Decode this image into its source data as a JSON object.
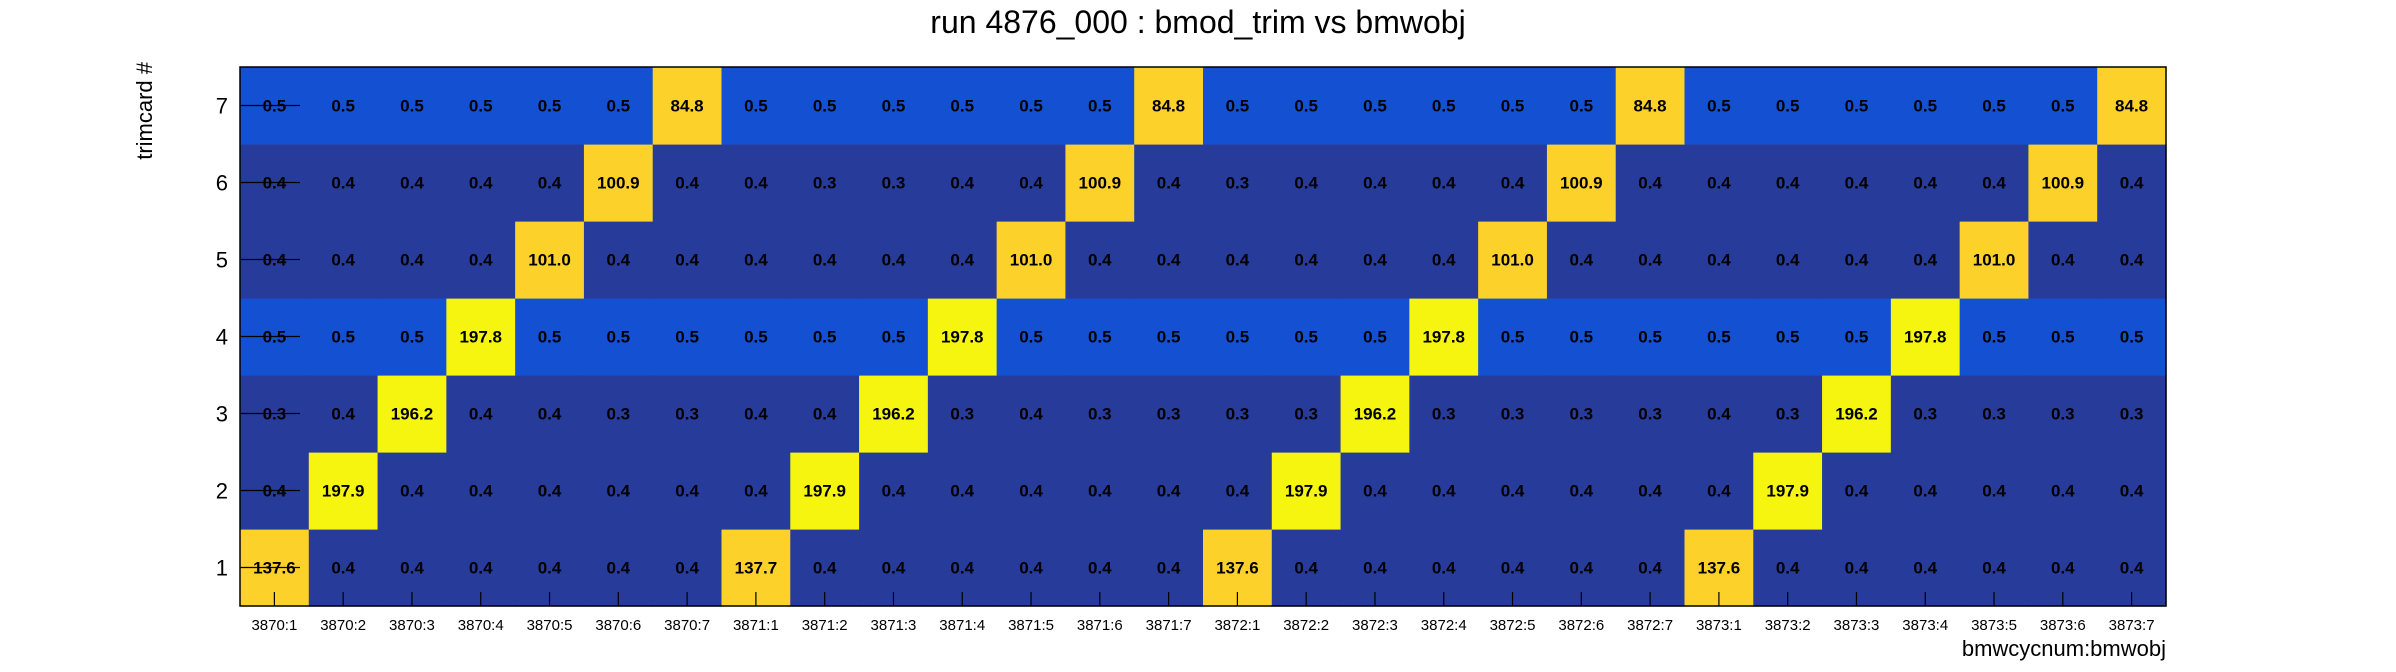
{
  "chart_data": {
    "type": "heatmap",
    "title": "run 4876_000 : bmod_trim vs bmwobj",
    "xlabel": "bmwcycnum:bmwobj",
    "ylabel": "trimcard #",
    "x_categories": [
      "3870:1",
      "3870:2",
      "3870:3",
      "3870:4",
      "3870:5",
      "3870:6",
      "3870:7",
      "3871:1",
      "3871:2",
      "3871:3",
      "3871:4",
      "3871:5",
      "3871:6",
      "3871:7",
      "3872:1",
      "3872:2",
      "3872:3",
      "3872:4",
      "3872:5",
      "3872:6",
      "3872:7",
      "3873:1",
      "3873:2",
      "3873:3",
      "3873:4",
      "3873:5",
      "3873:6",
      "3873:7"
    ],
    "y_categories": [
      "1",
      "2",
      "3",
      "4",
      "5",
      "6",
      "7"
    ],
    "values": [
      [
        "137.6",
        "0.4",
        "0.4",
        "0.4",
        "0.4",
        "0.4",
        "0.4",
        "137.7",
        "0.4",
        "0.4",
        "0.4",
        "0.4",
        "0.4",
        "0.4",
        "137.6",
        "0.4",
        "0.4",
        "0.4",
        "0.4",
        "0.4",
        "0.4",
        "137.6",
        "0.4",
        "0.4",
        "0.4",
        "0.4",
        "0.4",
        "0.4"
      ],
      [
        "0.4",
        "197.9",
        "0.4",
        "0.4",
        "0.4",
        "0.4",
        "0.4",
        "0.4",
        "197.9",
        "0.4",
        "0.4",
        "0.4",
        "0.4",
        "0.4",
        "0.4",
        "197.9",
        "0.4",
        "0.4",
        "0.4",
        "0.4",
        "0.4",
        "0.4",
        "197.9",
        "0.4",
        "0.4",
        "0.4",
        "0.4",
        "0.4"
      ],
      [
        "0.3",
        "0.4",
        "196.2",
        "0.4",
        "0.4",
        "0.3",
        "0.3",
        "0.4",
        "0.4",
        "196.2",
        "0.3",
        "0.4",
        "0.3",
        "0.3",
        "0.3",
        "0.3",
        "196.2",
        "0.3",
        "0.3",
        "0.3",
        "0.3",
        "0.4",
        "0.3",
        "196.2",
        "0.3",
        "0.3",
        "0.3",
        "0.3"
      ],
      [
        "0.5",
        "0.5",
        "0.5",
        "197.8",
        "0.5",
        "0.5",
        "0.5",
        "0.5",
        "0.5",
        "0.5",
        "197.8",
        "0.5",
        "0.5",
        "0.5",
        "0.5",
        "0.5",
        "0.5",
        "197.8",
        "0.5",
        "0.5",
        "0.5",
        "0.5",
        "0.5",
        "0.5",
        "197.8",
        "0.5",
        "0.5",
        "0.5"
      ],
      [
        "0.4",
        "0.4",
        "0.4",
        "0.4",
        "101.0",
        "0.4",
        "0.4",
        "0.4",
        "0.4",
        "0.4",
        "0.4",
        "101.0",
        "0.4",
        "0.4",
        "0.4",
        "0.4",
        "0.4",
        "0.4",
        "101.0",
        "0.4",
        "0.4",
        "0.4",
        "0.4",
        "0.4",
        "0.4",
        "101.0",
        "0.4",
        "0.4"
      ],
      [
        "0.4",
        "0.4",
        "0.4",
        "0.4",
        "0.4",
        "100.9",
        "0.4",
        "0.4",
        "0.3",
        "0.3",
        "0.4",
        "0.4",
        "100.9",
        "0.4",
        "0.3",
        "0.4",
        "0.4",
        "0.4",
        "0.4",
        "100.9",
        "0.4",
        "0.4",
        "0.4",
        "0.4",
        "0.4",
        "0.4",
        "100.9",
        "0.4"
      ],
      [
        "0.5",
        "0.5",
        "0.5",
        "0.5",
        "0.5",
        "0.5",
        "84.8",
        "0.5",
        "0.5",
        "0.5",
        "0.5",
        "0.5",
        "0.5",
        "84.8",
        "0.5",
        "0.5",
        "0.5",
        "0.5",
        "0.5",
        "0.5",
        "84.8",
        "0.5",
        "0.5",
        "0.5",
        "0.5",
        "0.5",
        "0.5",
        "84.8"
      ]
    ],
    "palette": {
      "dark_blue": "#273b9a",
      "blue": "#1450d2",
      "gold": "#fcd22a",
      "yellow": "#f6f50f",
      "frame": "#000000"
    },
    "grid": false,
    "legend": "none"
  }
}
